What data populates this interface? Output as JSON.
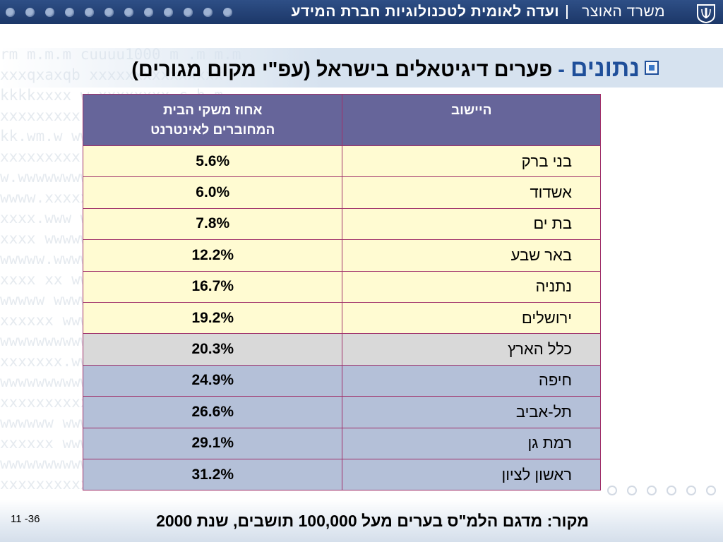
{
  "header": {
    "title": "ועדה לאומית לטכנולוגיות חברת המידע",
    "ministry": "משרד האוצר"
  },
  "slide": {
    "keyword": "נתונים",
    "dash": "-",
    "title": "פערים דיגיטאלים בישראל  (עפ\"י מקום מגורים)"
  },
  "table": {
    "headers": {
      "town": "היישוב",
      "percent_line1": "אחוז משקי הבית",
      "percent_line2": "המחוברים לאינטרנט"
    },
    "rows": [
      {
        "town": "בני ברק",
        "percent": "5.6%"
      },
      {
        "town": "אשדוד",
        "percent": "6.0%"
      },
      {
        "town": "בת ים",
        "percent": "7.8%"
      },
      {
        "town": "באר שבע",
        "percent": "12.2%"
      },
      {
        "town": "נתניה",
        "percent": "16.7%"
      },
      {
        "town": "ירושלים",
        "percent": "19.2%"
      },
      {
        "town": "כלל הארץ",
        "percent": "20.3%"
      },
      {
        "town": "חיפה",
        "percent": "24.9%"
      },
      {
        "town": "תל-אביב",
        "percent": "26.6%"
      },
      {
        "town": "רמת גן",
        "percent": "29.1%"
      },
      {
        "town": "ראשון לציון",
        "percent": "31.2%"
      }
    ]
  },
  "footer": {
    "source": "מקור: מדגם הלמ\"ס בערים מעל 100,000 תושבים, שנת 2000",
    "page_number": "11 -36"
  },
  "colors": {
    "header_bg": "#1c3768",
    "table_header_bg": "#66659a",
    "row_yellow": "#fffbd2",
    "row_gray": "#d9d9d9",
    "row_blue": "#b4c0d8",
    "keyword": "#1f4f9a"
  },
  "icons": {
    "emblem": "state-emblem-icon",
    "bullet": "square-bullet-icon"
  }
}
